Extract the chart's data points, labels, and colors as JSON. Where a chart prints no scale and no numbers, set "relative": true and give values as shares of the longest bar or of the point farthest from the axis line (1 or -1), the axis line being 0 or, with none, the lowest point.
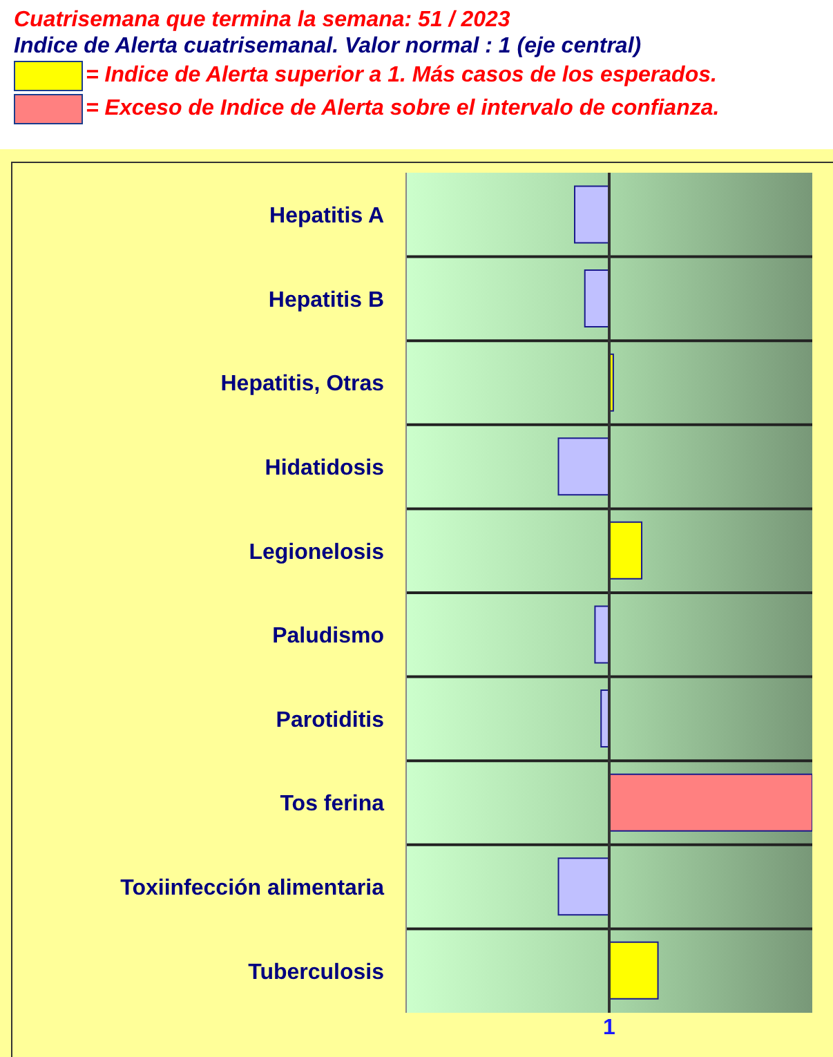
{
  "chart_data": {
    "type": "bar",
    "orientation": "horizontal",
    "relative": true,
    "title": "Cuatrisemana que termina la semana:   51   / 2023",
    "subtitle": "Indice de Alerta cuatrisemanal. Valor normal : 1 (eje central)",
    "annotations": [
      "= Indice de Alerta superior a 1. Más casos de los esperados.",
      "= Exceso de Indice de Alerta sobre el intervalo de confianza.",
      {
        "text": "1",
        "x": 0
      }
    ],
    "categories": [
      "Hepatitis A",
      "Hepatitis B",
      "Hepatitis, Otras",
      "Hidatidosis",
      "Legionelosis",
      "Paludismo",
      "Parotiditis",
      "Tos ferina",
      "Toxiinfección alimentaria",
      "Tuberculosis"
    ],
    "values": [
      -0.17,
      -0.12,
      0.02,
      -0.25,
      0.16,
      -0.07,
      -0.04,
      1,
      -0.25,
      0.24
    ],
    "colors": [
      "#c0c0ff",
      "#c0c0ff",
      "#ffff00",
      "#c0c0ff",
      "#ffff00",
      "#c0c0ff",
      "#c0c0ff",
      "#ff8080",
      "#c0c0ff",
      "#ffff00"
    ],
    "grid": "y"
  }
}
